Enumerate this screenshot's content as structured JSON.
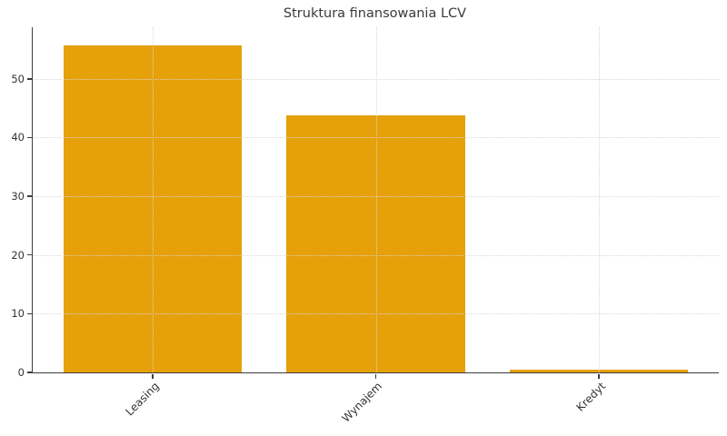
{
  "chart_data": {
    "type": "bar",
    "title": "Struktura finansowania LCV",
    "categories": [
      "Leasing",
      "Wynajem",
      "Kredyt"
    ],
    "values": [
      55.7,
      43.8,
      0.5
    ],
    "xlabel": "",
    "ylabel": "",
    "ylim": [
      0,
      58.8
    ],
    "yticks": [
      0,
      10,
      20,
      30,
      40,
      50
    ],
    "grid": true,
    "grid_style": "dotted",
    "x_tick_rotation": -45,
    "legend": null,
    "colors": {
      "bar": "#E6A00A",
      "axis": "#3d3d3d",
      "grid": "#d6d6d6",
      "text": "#333333",
      "title_text": "#3a3a3a",
      "background": "#ffffff"
    }
  }
}
